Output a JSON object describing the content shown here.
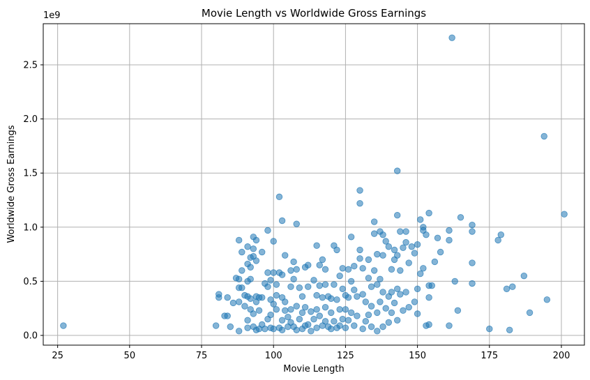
{
  "chart_data": {
    "type": "scatter",
    "title": "Movie Length vs Worldwide Gross Earnings",
    "xlabel": "Movie Length",
    "ylabel": "Worldwide Gross Earnings",
    "y_offset_label": "1e9",
    "xlim": [
      20,
      208
    ],
    "ylim": [
      -0.09,
      2.88
    ],
    "x_ticks": [
      25,
      50,
      75,
      100,
      125,
      150,
      175,
      200
    ],
    "x_tick_labels": [
      "25",
      "50",
      "75",
      "100",
      "125",
      "150",
      "175",
      "200"
    ],
    "y_ticks": [
      0.0,
      0.5,
      1.0,
      1.5,
      2.0,
      2.5
    ],
    "y_tick_labels": [
      "0.0",
      "0.5",
      "1.0",
      "1.5",
      "2.0",
      "2.5"
    ],
    "grid": true,
    "marker_color": "#1f77b4",
    "marker_alpha": 0.55,
    "series": [
      {
        "points": [
          [
            27,
            0.09
          ],
          [
            80,
            0.09
          ],
          [
            81,
            0.38
          ],
          [
            81,
            0.35
          ],
          [
            83,
            0.18
          ],
          [
            84,
            0.18
          ],
          [
            84,
            0.35
          ],
          [
            85,
            0.08
          ],
          [
            86,
            0.3
          ],
          [
            87,
            0.53
          ],
          [
            88,
            0.52
          ],
          [
            88,
            0.88
          ],
          [
            88,
            0.44
          ],
          [
            88,
            0.31
          ],
          [
            88,
            0.04
          ],
          [
            89,
            0.77
          ],
          [
            89,
            0.6
          ],
          [
            89,
            0.44
          ],
          [
            90,
            0.37
          ],
          [
            90,
            0.27
          ],
          [
            91,
            0.66
          ],
          [
            91,
            0.82
          ],
          [
            91,
            0.5
          ],
          [
            91,
            0.36
          ],
          [
            91,
            0.14
          ],
          [
            91,
            0.07
          ],
          [
            92,
            0.63
          ],
          [
            92,
            0.72
          ],
          [
            92,
            0.52
          ],
          [
            92,
            0.34
          ],
          [
            92,
            0.24
          ],
          [
            93,
            0.91
          ],
          [
            93,
            0.8
          ],
          [
            93,
            0.73
          ],
          [
            93,
            0.2
          ],
          [
            93,
            0.08
          ],
          [
            94,
            0.88
          ],
          [
            94,
            0.69
          ],
          [
            94,
            0.36
          ],
          [
            94,
            0.31
          ],
          [
            94,
            0.05
          ],
          [
            95,
            0.35
          ],
          [
            95,
            0.23
          ],
          [
            95,
            0.06
          ],
          [
            96,
            0.77
          ],
          [
            96,
            0.1
          ],
          [
            96,
            0.35
          ],
          [
            97,
            0.48
          ],
          [
            97,
            0.06
          ],
          [
            98,
            0.97
          ],
          [
            98,
            0.58
          ],
          [
            98,
            0.45
          ],
          [
            98,
            0.15
          ],
          [
            99,
            0.51
          ],
          [
            99,
            0.33
          ],
          [
            99,
            0.19
          ],
          [
            99,
            0.07
          ],
          [
            100,
            0.87
          ],
          [
            100,
            0.58
          ],
          [
            100,
            0.29
          ],
          [
            100,
            0.06
          ],
          [
            101,
            0.47
          ],
          [
            101,
            0.37
          ],
          [
            101,
            0.24
          ],
          [
            102,
            1.28
          ],
          [
            102,
            0.58
          ],
          [
            102,
            0.07
          ],
          [
            103,
            1.06
          ],
          [
            103,
            0.56
          ],
          [
            103,
            0.35
          ],
          [
            103,
            0.14
          ],
          [
            103,
            0.05
          ],
          [
            104,
            0.74
          ],
          [
            104,
            0.31
          ],
          [
            104,
            0.23
          ],
          [
            105,
            0.17
          ],
          [
            105,
            0.08
          ],
          [
            106,
            0.6
          ],
          [
            106,
            0.45
          ],
          [
            106,
            0.24
          ],
          [
            106,
            0.12
          ],
          [
            107,
            0.68
          ],
          [
            107,
            0.52
          ],
          [
            107,
            0.08
          ],
          [
            108,
            1.03
          ],
          [
            108,
            0.61
          ],
          [
            108,
            0.27
          ],
          [
            108,
            0.05
          ],
          [
            109,
            0.44
          ],
          [
            109,
            0.15
          ],
          [
            110,
            0.36
          ],
          [
            110,
            0.21
          ],
          [
            110,
            0.06
          ],
          [
            111,
            0.63
          ],
          [
            111,
            0.26
          ],
          [
            111,
            0.09
          ],
          [
            112,
            0.65
          ],
          [
            112,
            0.45
          ],
          [
            112,
            0.1
          ],
          [
            113,
            0.22
          ],
          [
            113,
            0.04
          ],
          [
            114,
            0.51
          ],
          [
            114,
            0.15
          ],
          [
            115,
            0.83
          ],
          [
            115,
            0.37
          ],
          [
            115,
            0.24
          ],
          [
            115,
            0.07
          ],
          [
            116,
            0.65
          ],
          [
            116,
            0.46
          ],
          [
            116,
            0.18
          ],
          [
            117,
            0.7
          ],
          [
            117,
            0.35
          ],
          [
            117,
            0.09
          ],
          [
            118,
            0.61
          ],
          [
            118,
            0.47
          ],
          [
            118,
            0.26
          ],
          [
            118,
            0.13
          ],
          [
            119,
            0.36
          ],
          [
            119,
            0.08
          ],
          [
            120,
            0.34
          ],
          [
            120,
            0.21
          ],
          [
            120,
            0.06
          ],
          [
            121,
            0.83
          ],
          [
            121,
            0.47
          ],
          [
            121,
            0.13
          ],
          [
            122,
            0.79
          ],
          [
            122,
            0.33
          ],
          [
            122,
            0.07
          ],
          [
            123,
            0.55
          ],
          [
            123,
            0.24
          ],
          [
            123,
            0.09
          ],
          [
            124,
            0.62
          ],
          [
            124,
            0.43
          ],
          [
            124,
            0.15
          ],
          [
            125,
            0.37
          ],
          [
            125,
            0.24
          ],
          [
            125,
            0.07
          ],
          [
            126,
            0.61
          ],
          [
            126,
            0.35
          ],
          [
            126,
            0.14
          ],
          [
            127,
            0.91
          ],
          [
            127,
            0.5
          ],
          [
            127,
            0.21
          ],
          [
            128,
            0.64
          ],
          [
            128,
            0.42
          ],
          [
            128,
            0.09
          ],
          [
            129,
            0.36
          ],
          [
            129,
            0.18
          ],
          [
            130,
            1.34
          ],
          [
            130,
            1.22
          ],
          [
            130,
            0.79
          ],
          [
            130,
            0.71
          ],
          [
            131,
            0.62
          ],
          [
            131,
            0.38
          ],
          [
            131,
            0.06
          ],
          [
            132,
            0.31
          ],
          [
            132,
            0.13
          ],
          [
            133,
            0.7
          ],
          [
            133,
            0.53
          ],
          [
            133,
            0.19
          ],
          [
            134,
            0.45
          ],
          [
            134,
            0.27
          ],
          [
            134,
            0.08
          ],
          [
            135,
            1.05
          ],
          [
            135,
            0.94
          ],
          [
            135,
            0.6
          ],
          [
            136,
            0.75
          ],
          [
            136,
            0.47
          ],
          [
            136,
            0.21
          ],
          [
            136,
            0.04
          ],
          [
            137,
            0.96
          ],
          [
            137,
            0.52
          ],
          [
            137,
            0.31
          ],
          [
            138,
            0.93
          ],
          [
            138,
            0.74
          ],
          [
            138,
            0.4
          ],
          [
            138,
            0.08
          ],
          [
            139,
            0.87
          ],
          [
            139,
            0.25
          ],
          [
            140,
            0.82
          ],
          [
            140,
            0.36
          ],
          [
            140,
            0.12
          ],
          [
            141,
            0.61
          ],
          [
            141,
            0.4
          ],
          [
            141,
            0.21
          ],
          [
            142,
            0.79
          ],
          [
            142,
            0.7
          ],
          [
            142,
            0.3
          ],
          [
            143,
            1.52
          ],
          [
            143,
            1.11
          ],
          [
            143,
            0.74
          ],
          [
            143,
            0.43
          ],
          [
            143,
            0.14
          ],
          [
            144,
            0.96
          ],
          [
            144,
            0.6
          ],
          [
            144,
            0.38
          ],
          [
            145,
            0.81
          ],
          [
            145,
            0.23
          ],
          [
            146,
            0.96
          ],
          [
            146,
            0.86
          ],
          [
            146,
            0.4
          ],
          [
            147,
            0.67
          ],
          [
            147,
            0.26
          ],
          [
            148,
            0.82
          ],
          [
            149,
            0.76
          ],
          [
            149,
            0.31
          ],
          [
            150,
            0.84
          ],
          [
            150,
            0.43
          ],
          [
            150,
            0.2
          ],
          [
            151,
            1.07
          ],
          [
            151,
            0.57
          ],
          [
            152,
            1.0
          ],
          [
            152,
            0.62
          ],
          [
            152,
            0.97
          ],
          [
            153,
            0.93
          ],
          [
            153,
            0.09
          ],
          [
            154,
            1.13
          ],
          [
            154,
            0.46
          ],
          [
            154,
            0.35
          ],
          [
            154,
            0.1
          ],
          [
            155,
            0.46
          ],
          [
            156,
            0.68
          ],
          [
            157,
            0.9
          ],
          [
            158,
            0.77
          ],
          [
            161,
            0.97
          ],
          [
            161,
            0.88
          ],
          [
            161,
            0.09
          ],
          [
            162,
            2.75
          ],
          [
            163,
            0.5
          ],
          [
            164,
            0.23
          ],
          [
            165,
            1.09
          ],
          [
            169,
            1.02
          ],
          [
            169,
            0.96
          ],
          [
            169,
            0.67
          ],
          [
            169,
            0.48
          ],
          [
            175,
            0.06
          ],
          [
            178,
            0.88
          ],
          [
            179,
            0.93
          ],
          [
            181,
            0.43
          ],
          [
            182,
            0.05
          ],
          [
            183,
            0.45
          ],
          [
            187,
            0.55
          ],
          [
            189,
            0.21
          ],
          [
            194,
            1.84
          ],
          [
            195,
            0.33
          ],
          [
            201,
            1.12
          ]
        ]
      }
    ]
  }
}
